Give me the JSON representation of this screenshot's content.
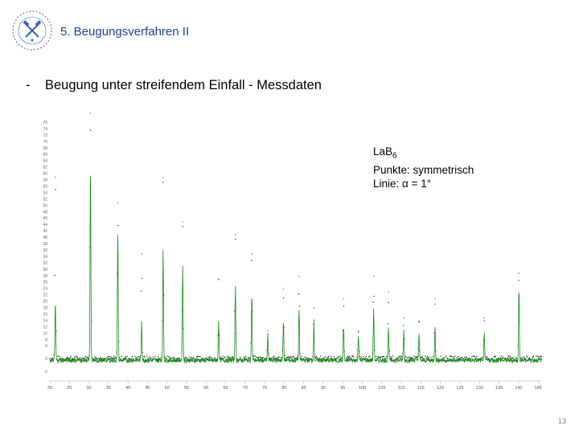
{
  "header": {
    "title": "5. Beugungsverfahren II"
  },
  "subtitle": {
    "dash": "-",
    "text": "Beugung unter streifendem Einfall - Messdaten"
  },
  "legend": {
    "material_main": "LaB",
    "material_sub": "6",
    "points": "Punkte: symmetrisch",
    "line": "Linie: α = 1°"
  },
  "page_number": "13",
  "colors": {
    "title": "#1f3f8c",
    "line": "#1a8a1a",
    "points": "#222222",
    "logo": "#3a62b5"
  },
  "chart_data": {
    "type": "line",
    "x": {
      "min": 20,
      "max": 146,
      "ticks": [
        20,
        25,
        30,
        35,
        40,
        45,
        50,
        55,
        60,
        65,
        70,
        75,
        80,
        85,
        90,
        95,
        100,
        105,
        110,
        115,
        120,
        125,
        130,
        135,
        140,
        145
      ]
    },
    "ylim": [
      -4,
      78
    ],
    "yticks": [
      -2,
      2,
      6,
      8,
      10,
      12,
      14,
      16,
      18,
      20,
      22,
      24,
      26,
      28,
      30,
      32,
      34,
      36,
      38,
      40,
      42,
      44,
      46,
      48,
      50,
      52,
      54,
      56,
      58,
      60,
      62,
      64,
      66,
      68,
      70,
      72,
      74,
      76
    ],
    "baseline": {
      "points": 2.0,
      "line": 1.5
    },
    "series": [
      {
        "kind": "line",
        "peaks": [
          {
            "x": 21.4,
            "y": 20
          },
          {
            "x": 30.4,
            "y": 64
          },
          {
            "x": 37.4,
            "y": 42
          },
          {
            "x": 43.5,
            "y": 14
          },
          {
            "x": 49.0,
            "y": 36
          },
          {
            "x": 54.0,
            "y": 32
          },
          {
            "x": 63.2,
            "y": 14
          },
          {
            "x": 67.5,
            "y": 26
          },
          {
            "x": 71.7,
            "y": 22
          },
          {
            "x": 75.8,
            "y": 9
          },
          {
            "x": 79.8,
            "y": 14
          },
          {
            "x": 83.8,
            "y": 18
          },
          {
            "x": 87.6,
            "y": 13
          },
          {
            "x": 95.2,
            "y": 12
          },
          {
            "x": 99.0,
            "y": 10
          },
          {
            "x": 102.9,
            "y": 18
          },
          {
            "x": 106.7,
            "y": 12
          },
          {
            "x": 110.6,
            "y": 11
          },
          {
            "x": 114.5,
            "y": 10
          },
          {
            "x": 118.6,
            "y": 12
          },
          {
            "x": 131.2,
            "y": 10
          },
          {
            "x": 140.1,
            "y": 24
          }
        ]
      },
      {
        "kind": "points",
        "peaks": [
          {
            "x": 21.4,
            "y": 58
          },
          {
            "x": 30.4,
            "y": 78
          },
          {
            "x": 37.4,
            "y": 50
          },
          {
            "x": 43.5,
            "y": 34
          },
          {
            "x": 49.0,
            "y": 58
          },
          {
            "x": 54.0,
            "y": 44
          },
          {
            "x": 63.2,
            "y": 26
          },
          {
            "x": 67.5,
            "y": 40
          },
          {
            "x": 71.7,
            "y": 34
          },
          {
            "x": 75.8,
            "y": 10
          },
          {
            "x": 79.8,
            "y": 23
          },
          {
            "x": 83.8,
            "y": 27
          },
          {
            "x": 87.6,
            "y": 17
          },
          {
            "x": 95.2,
            "y": 20
          },
          {
            "x": 99.0,
            "y": 10
          },
          {
            "x": 102.9,
            "y": 27
          },
          {
            "x": 106.7,
            "y": 22
          },
          {
            "x": 110.6,
            "y": 14
          },
          {
            "x": 114.5,
            "y": 13
          },
          {
            "x": 118.6,
            "y": 20
          },
          {
            "x": 131.2,
            "y": 14
          },
          {
            "x": 140.1,
            "y": 28
          }
        ]
      }
    ]
  }
}
